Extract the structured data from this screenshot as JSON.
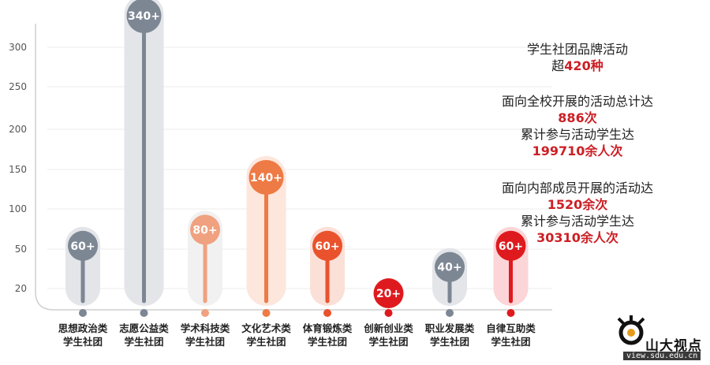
{
  "chart_data": {
    "type": "bar",
    "categories": [
      [
        "思想政治类",
        "学生社团"
      ],
      [
        "志愿公益类",
        "学生社团"
      ],
      [
        "学术科技类",
        "学生社团"
      ],
      [
        "文化艺术类",
        "学生社团"
      ],
      [
        "体育锻炼类",
        "学生社团"
      ],
      [
        "创新创业类",
        "学生社团"
      ],
      [
        "职业发展类",
        "学生社团"
      ],
      [
        "自律互助类",
        "学生社团"
      ]
    ],
    "values": [
      60,
      340,
      80,
      140,
      60,
      20,
      40,
      60
    ],
    "value_labels": [
      "60+",
      "340+",
      "80+",
      "140+",
      "60+",
      "20+",
      "40+",
      "60+"
    ],
    "colors": [
      "#7d8794",
      "#7d8794",
      "#f0a17f",
      "#ee7a45",
      "#e9522c",
      "#df1a1f",
      "#7d8794",
      "#df1a1f"
    ],
    "glow_colors": [
      "#e3e5e8",
      "#e3e5e8",
      "#f1f1f1",
      "#fde6dc",
      "#fbe0d8",
      "#ffffff",
      "#e3e5e8",
      "#fbd5d7"
    ],
    "y_ticks": [
      20,
      50,
      100,
      150,
      200,
      250,
      300
    ],
    "ylim": [
      0,
      360
    ],
    "title": "",
    "xlabel": "",
    "ylabel": ""
  },
  "info": {
    "line1": "学生社团品牌活动",
    "line2_prefix": "超",
    "line2_value": "420种",
    "line3": "面向全校开展的活动总计达",
    "line4": "886次",
    "line5": "累计参与活动学生达",
    "line6": "199710余人次",
    "line7": "面向内部成员开展的活动达",
    "line8": "1520余次",
    "line9": "累计参与活动学生达",
    "line10": "30310余人次"
  },
  "logo": {
    "name": "山大视点",
    "url": "view.sdu.edu.cn"
  }
}
